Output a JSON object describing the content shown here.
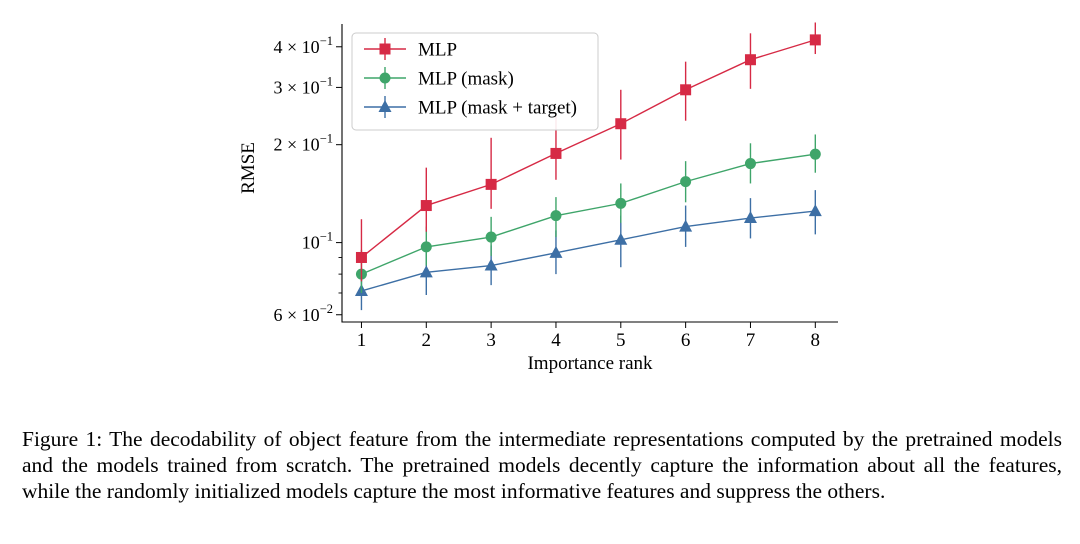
{
  "chart_data": {
    "type": "line",
    "title": "",
    "xlabel": "Importance rank",
    "ylabel": "RMSE",
    "yscale": "log",
    "xlim": [
      0.7,
      8.35
    ],
    "ylim": [
      0.057,
      0.47
    ],
    "x": [
      1,
      2,
      3,
      4,
      5,
      6,
      7,
      8
    ],
    "x_ticks": [
      "1",
      "2",
      "3",
      "4",
      "5",
      "6",
      "7",
      "8"
    ],
    "y_ticks": [
      {
        "value": 0.06,
        "mantissa": "6 × 10",
        "exp": "−2"
      },
      {
        "value": 0.1,
        "mantissa": "10",
        "exp": "−1"
      },
      {
        "value": 0.2,
        "mantissa": "2 × 10",
        "exp": "−1"
      },
      {
        "value": 0.3,
        "mantissa": "3 × 10",
        "exp": "−1"
      },
      {
        "value": 0.4,
        "mantissa": "4 × 10",
        "exp": "−1"
      }
    ],
    "grid": false,
    "legend": "top-left",
    "series": [
      {
        "name": "MLP",
        "color": "#d62a45",
        "marker": "square",
        "values": [
          0.09,
          0.13,
          0.151,
          0.188,
          0.232,
          0.295,
          0.365,
          0.42
        ],
        "err_low": [
          0.076,
          0.108,
          0.127,
          0.156,
          0.18,
          0.237,
          0.297,
          0.38
        ],
        "err_high": [
          0.118,
          0.17,
          0.21,
          0.245,
          0.295,
          0.36,
          0.44,
          0.475
        ]
      },
      {
        "name": "MLP (mask)",
        "color": "#3fa56a",
        "marker": "circle",
        "values": [
          0.08,
          0.097,
          0.104,
          0.121,
          0.132,
          0.154,
          0.175,
          0.187
        ],
        "err_low": [
          0.07,
          0.085,
          0.091,
          0.104,
          0.115,
          0.133,
          0.152,
          0.164
        ],
        "err_high": [
          0.095,
          0.112,
          0.12,
          0.138,
          0.152,
          0.178,
          0.202,
          0.215
        ]
      },
      {
        "name": "MLP (mask + target)",
        "color": "#3d6fa5",
        "marker": "triangle",
        "values": [
          0.071,
          0.081,
          0.085,
          0.093,
          0.102,
          0.112,
          0.119,
          0.125
        ],
        "err_low": [
          0.062,
          0.069,
          0.074,
          0.08,
          0.084,
          0.097,
          0.103,
          0.106
        ],
        "err_high": [
          0.081,
          0.095,
          0.098,
          0.109,
          0.121,
          0.13,
          0.137,
          0.145
        ]
      }
    ]
  },
  "caption": {
    "text": "Figure 1: The decodability of object feature from the intermediate representations computed by the pretrained models and the models trained from scratch. The pretrained models decently capture the information about all the features, while the randomly initialized models capture the most informative features and suppress the others."
  }
}
